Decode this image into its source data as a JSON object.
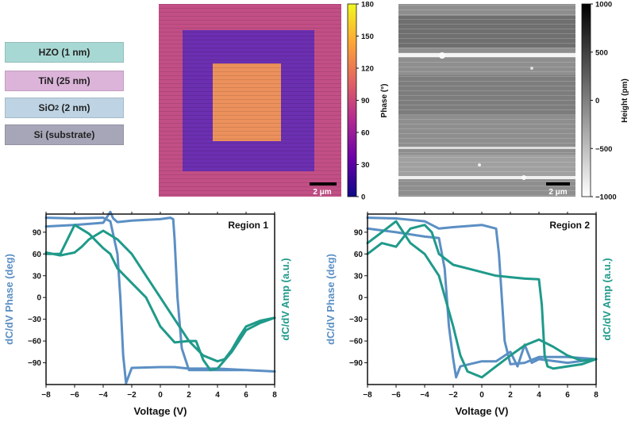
{
  "stack": {
    "layers": [
      {
        "label": "HZO (1 nm)",
        "color": "#a8d8d4"
      },
      {
        "label": "TiN (25 nm)",
        "color": "#dcb4da"
      },
      {
        "label": "SiO",
        "sub": "2",
        "rest": " (2 nm)",
        "color": "#bed4e4"
      },
      {
        "label": "Si (substrate)",
        "color": "#a7a6b8"
      }
    ]
  },
  "maps": {
    "phase": {
      "colorbar_label": "Phase (°)",
      "ticks": [
        "180",
        "150",
        "120",
        "90",
        "60",
        "30",
        "0"
      ],
      "scalebar": "2 μm",
      "colors": [
        "#0d0887",
        "#6a00a8",
        "#b12a90",
        "#e16462",
        "#fca636",
        "#f0f921"
      ]
    },
    "height": {
      "colorbar_label": "Height (pm)",
      "ticks": [
        "1000",
        "500",
        "0",
        "−500",
        "−1000"
      ],
      "scalebar": "2 μm"
    }
  },
  "chart_data": [
    {
      "type": "line",
      "title": "Region 1",
      "xlabel": "Voltage (V)",
      "ylabel_left": "dC/dV Phase (deg)",
      "ylabel_right": "dC/dV Amp (a.u.)",
      "xlim": [
        -8,
        8
      ],
      "ylim": [
        -120,
        115
      ],
      "x_ticks": [
        -8,
        -6,
        -4,
        -2,
        0,
        2,
        4,
        6,
        8
      ],
      "y_ticks": [
        90,
        60,
        30,
        0,
        -30,
        -60,
        -90
      ],
      "series": [
        {
          "name": "dC/dV Phase",
          "color": "#5b8fc4",
          "x": [
            -8,
            -6,
            -4,
            -3.5,
            -3,
            -2.8,
            -2.6,
            -2.4,
            -2,
            0,
            1,
            1.5,
            2,
            4,
            6,
            8,
            8,
            6,
            4,
            2,
            1.5,
            1.2,
            1,
            0.9,
            0.7,
            0,
            -2,
            -3,
            -3.3,
            -3.5,
            -4,
            -6,
            -8
          ],
          "y": [
            110,
            109,
            110,
            105,
            60,
            0,
            -80,
            -118,
            -97,
            -96,
            -96,
            -97,
            -98,
            -98,
            -100,
            -102,
            -102,
            -100,
            -100,
            -100,
            -70,
            0,
            80,
            108,
            110,
            108,
            106,
            104,
            109,
            118,
            103,
            100,
            98
          ]
        },
        {
          "name": "dC/dV Amp",
          "color": "#1f9a8a",
          "x": [
            -8,
            -7,
            -6,
            -5,
            -4.5,
            -4,
            -3.5,
            -3,
            -2,
            -1,
            0,
            1,
            2,
            2.5,
            3,
            3.5,
            4,
            5,
            6,
            7,
            8,
            8,
            7,
            6,
            5.5,
            5,
            4.5,
            4,
            3,
            2,
            1,
            0,
            -1,
            -2,
            -3,
            -4,
            -5,
            -5.5,
            -6,
            -6.5,
            -7,
            -8
          ],
          "y": [
            60,
            60,
            100,
            88,
            78,
            68,
            60,
            40,
            20,
            0,
            -40,
            -62,
            -60,
            -60,
            -86,
            -100,
            -98,
            -75,
            -45,
            -35,
            -28,
            -28,
            -32,
            -40,
            -55,
            -72,
            -85,
            -88,
            -80,
            -60,
            -30,
            0,
            30,
            60,
            80,
            92,
            80,
            70,
            62,
            60,
            58,
            62
          ]
        }
      ]
    },
    {
      "type": "line",
      "title": "Region 2",
      "xlabel": "Voltage (V)",
      "ylabel_left": "dC/dV Phase (deg)",
      "ylabel_right": "dC/dV Amp (a.u.)",
      "xlim": [
        -8,
        8
      ],
      "ylim": [
        -120,
        115
      ],
      "x_ticks": [
        -8,
        -6,
        -4,
        -2,
        0,
        2,
        4,
        6,
        8
      ],
      "y_ticks": [
        90,
        60,
        30,
        0,
        -30,
        -60,
        -90
      ],
      "series": [
        {
          "name": "dC/dV Phase",
          "color": "#5b8fc4",
          "x": [
            -8,
            -6,
            -4,
            -3,
            -2.6,
            -2.3,
            -2,
            -1.8,
            -1.5,
            0,
            1,
            2,
            2.5,
            3,
            3.5,
            4,
            6,
            8,
            8,
            6,
            4,
            3,
            2,
            1.6,
            1.4,
            1.2,
            1,
            0,
            -2,
            -3,
            -3.5,
            -4,
            -6,
            -8
          ],
          "y": [
            95,
            90,
            84,
            82,
            40,
            -40,
            -85,
            -110,
            -95,
            -88,
            -88,
            -75,
            -95,
            -65,
            -90,
            -85,
            -90,
            -85,
            -85,
            -82,
            -82,
            -90,
            -92,
            -60,
            0,
            60,
            95,
            100,
            97,
            95,
            100,
            105,
            109,
            110
          ]
        },
        {
          "name": "dC/dV Amp",
          "color": "#1f9a8a",
          "x": [
            -8,
            -7,
            -6,
            -5,
            -4,
            -3.5,
            -3,
            -2,
            -1,
            0,
            1,
            2,
            3,
            4,
            4.2,
            4.4,
            4.6,
            5,
            6,
            7,
            8,
            8,
            7,
            6,
            5,
            4,
            3,
            2,
            1,
            0,
            -1,
            -1.5,
            -2,
            -3,
            -4,
            -5,
            -6,
            -7,
            -8
          ],
          "y": [
            60,
            75,
            70,
            95,
            100,
            90,
            60,
            45,
            40,
            35,
            30,
            28,
            26,
            25,
            -10,
            -80,
            -95,
            -98,
            -95,
            -92,
            -85,
            -85,
            -87,
            -80,
            -68,
            -58,
            -66,
            -80,
            -95,
            -110,
            -102,
            -80,
            -40,
            30,
            60,
            75,
            105,
            90,
            75
          ]
        }
      ]
    }
  ]
}
